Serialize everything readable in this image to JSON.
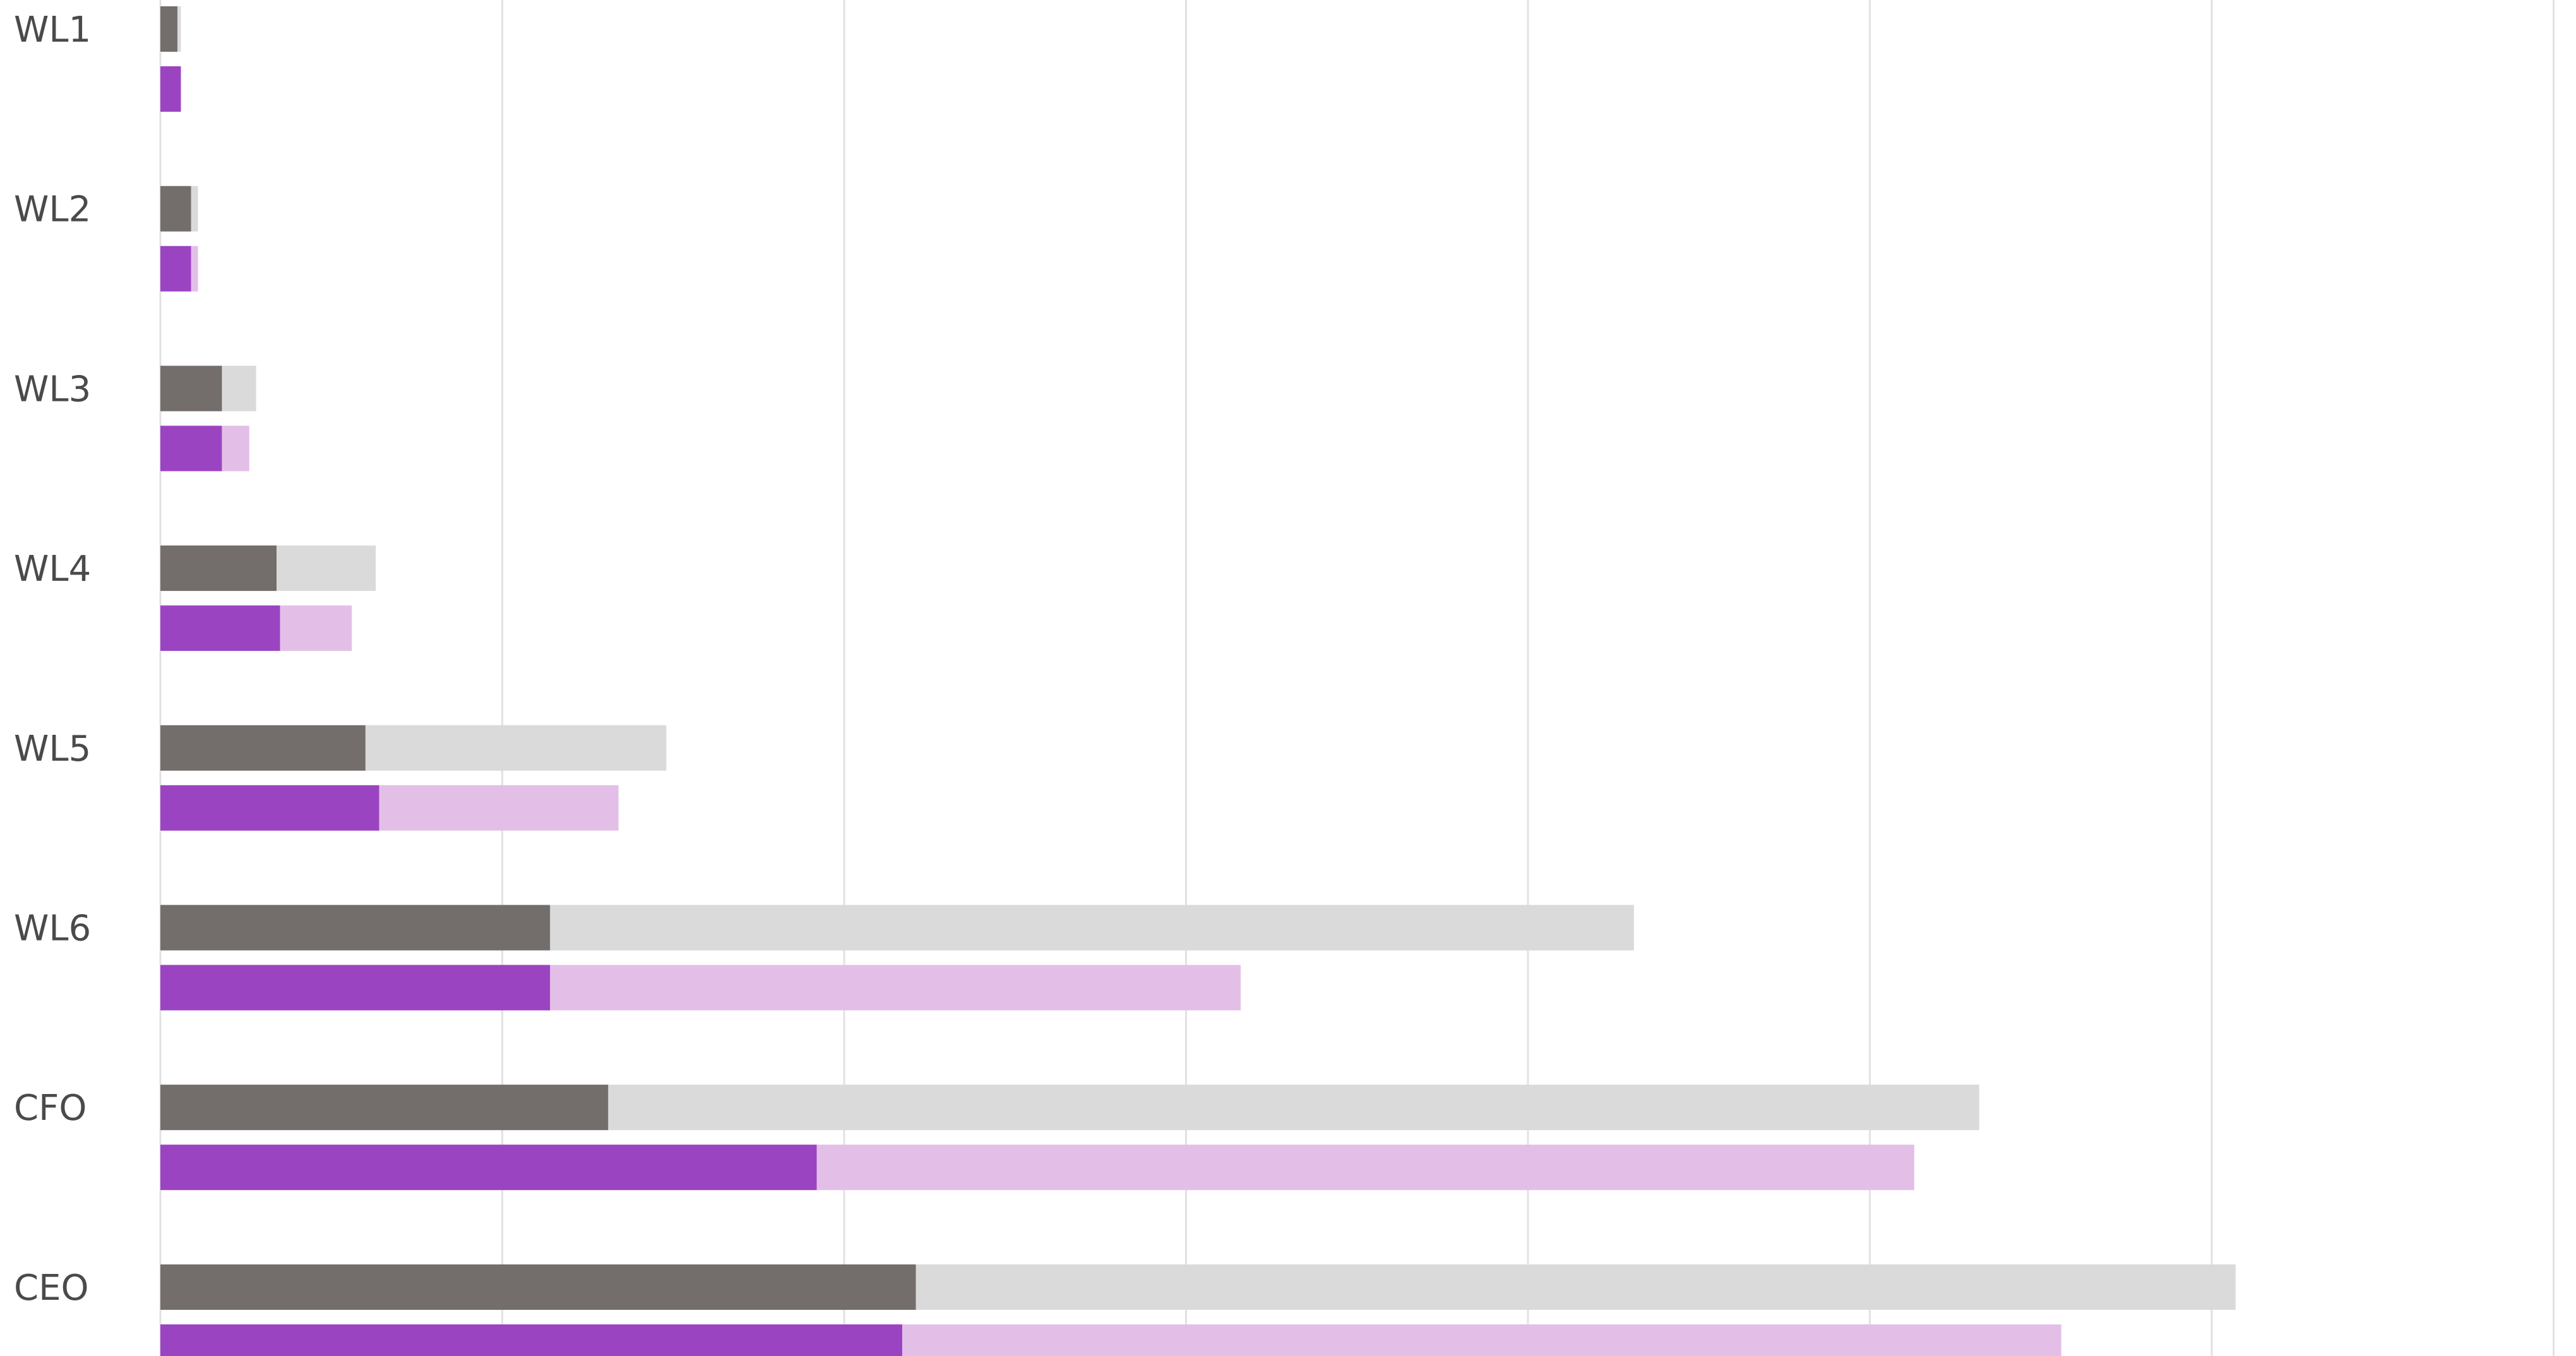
{
  "chart_data": {
    "type": "bar",
    "orientation": "horizontal",
    "categories": [
      "WL1",
      "WL2",
      "WL3",
      "WL4",
      "WL5",
      "WL6",
      "CFO",
      "CEO"
    ],
    "xlim": [
      0,
      7
    ],
    "grid": true,
    "legend": "none",
    "groups": [
      {
        "segments": [
          {
            "values": [
              0.05,
              0.09,
              0.18,
              0.34,
              0.6,
              1.14,
              1.31,
              2.21
            ],
            "color": "#736e6b"
          },
          {
            "values": [
              0.01,
              0.02,
              0.1,
              0.29,
              0.88,
              3.17,
              4.01,
              3.86
            ],
            "color": "#dadada"
          }
        ]
      },
      {
        "segments": [
          {
            "values": [
              0.06,
              0.09,
              0.18,
              0.35,
              0.64,
              1.14,
              1.92,
              2.17
            ],
            "color": "#9b44c1"
          },
          {
            "values": [
              0.0,
              0.02,
              0.08,
              0.21,
              0.7,
              2.02,
              3.21,
              3.39
            ],
            "color": "#e3bfe8"
          }
        ]
      }
    ]
  }
}
